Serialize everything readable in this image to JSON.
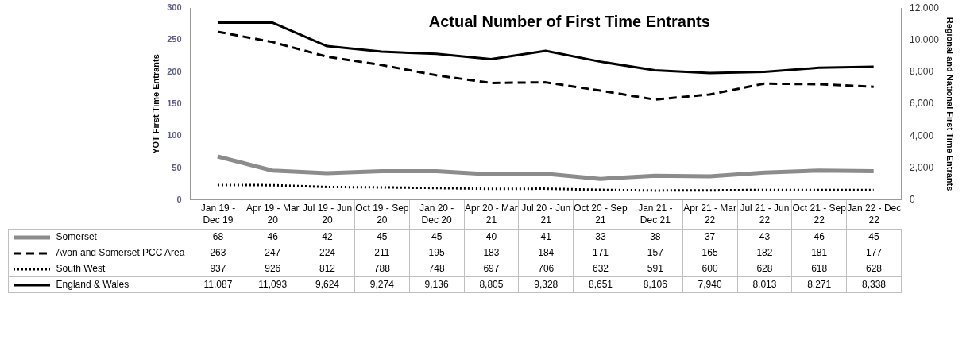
{
  "chart_data": {
    "type": "line",
    "title": "Actual Number of First Time Entrants",
    "ylabel": "YOT First Time Entrants",
    "y2label": "Regional and National First Time Entrants",
    "categories": [
      "Jan 19 - Dec 19",
      "Apr 19 - Mar 20",
      "Jul 19 - Jun 20",
      "Oct 19 - Sep 20",
      "Jan 20 - Dec 20",
      "Apr 20 - Mar 21",
      "Jul 20 - Jun 21",
      "Oct 20 - Sep 21",
      "Jan 21 - Dec 21",
      "Apr 21 - Mar 22",
      "Jul 21 - Jun 22",
      "Oct 21 - Sep 22",
      "Jan 22 - Dec 22"
    ],
    "series": [
      {
        "name": "Somerset",
        "color": "#8c8c8c",
        "line_style": "solid",
        "values": [
          68,
          46,
          42,
          45,
          45,
          40,
          41,
          33,
          38,
          37,
          43,
          46,
          45
        ],
        "value_labels": [
          "68",
          "46",
          "42",
          "45",
          "45",
          "40",
          "41",
          "33",
          "38",
          "37",
          "43",
          "46",
          "45"
        ]
      },
      {
        "name": "Avon and Somerset PCC Area",
        "color": "#000000",
        "line_style": "dashed",
        "values": [
          263,
          247,
          224,
          211,
          195,
          183,
          184,
          171,
          157,
          165,
          182,
          181,
          177
        ],
        "value_labels": [
          "263",
          "247",
          "224",
          "211",
          "195",
          "183",
          "184",
          "171",
          "157",
          "165",
          "182",
          "181",
          "177"
        ]
      },
      {
        "name": "South West",
        "color": "#000000",
        "line_style": "dotted",
        "axis": "y2",
        "values": [
          937,
          926,
          812,
          788,
          748,
          697,
          706,
          632,
          591,
          600,
          628,
          618,
          628
        ],
        "value_labels": [
          "937",
          "926",
          "812",
          "788",
          "748",
          "697",
          "706",
          "632",
          "591",
          "600",
          "628",
          "618",
          "628"
        ]
      },
      {
        "name": "England & Wales",
        "color": "#000000",
        "line_style": "solid",
        "axis": "y2",
        "values": [
          11087,
          11093,
          9624,
          9274,
          9136,
          8805,
          9328,
          8651,
          8106,
          7940,
          8013,
          8271,
          8338
        ],
        "value_labels": [
          "11,087",
          "11,093",
          "9,624",
          "9,274",
          "9,136",
          "8,805",
          "9,328",
          "8,651",
          "8,106",
          "7,940",
          "8,013",
          "8,271",
          "8,338"
        ]
      }
    ],
    "ylim": [
      0,
      300
    ],
    "yticks": [
      0,
      50,
      100,
      150,
      200,
      250,
      300
    ],
    "y2lim": [
      0,
      12000
    ],
    "y2ticks": [
      0,
      {
        "value": 2000,
        "label": "2,000"
      },
      {
        "value": 4000,
        "label": "4,000"
      },
      {
        "value": 6000,
        "label": "6,000"
      },
      {
        "value": 8000,
        "label": "8,000"
      },
      {
        "value": 10000,
        "label": "10,000"
      },
      {
        "value": 12000,
        "label": "12,000"
      }
    ],
    "grid": false,
    "legend": "bottom",
    "marker": "none"
  }
}
